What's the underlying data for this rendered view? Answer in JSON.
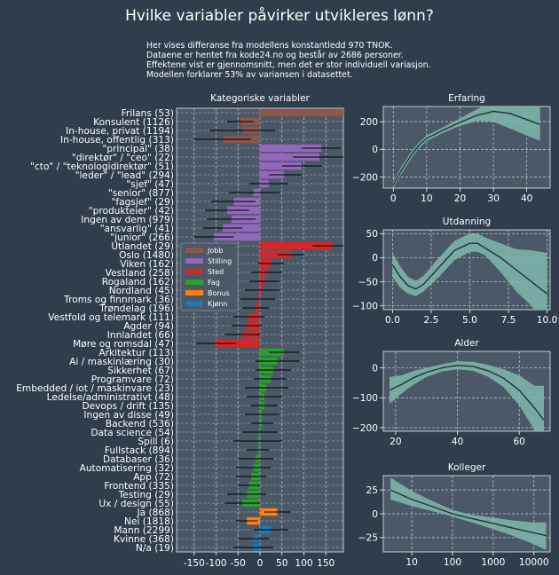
{
  "title": "Hvilke variabler påvirker utvikleres lønn?",
  "subtitle_lines": [
    "Her vises differanse fra modellens konstantledd 970 TNOK.",
    "Dataene er hentet fra kode24.no og består av 2686 personer.",
    "Effektene vist er gjennomsnitt, men det er stor individuell variasjon.",
    "Modellen forklarer 53% av variansen i datasettet."
  ],
  "colors": {
    "background": "#2f3d4c",
    "panel": "#4b5867",
    "grid": "#c8ced6",
    "band": "#7fb8ac",
    "line": "#223038",
    "Jobb": "#8c564b",
    "Stilling": "#9467bd",
    "Sted": "#d62728",
    "Fag": "#2ca02c",
    "Bonus": "#ff7f0e",
    "Kjønn": "#1f77b4"
  },
  "chart_data": [
    {
      "type": "bar",
      "orientation": "horizontal",
      "title": "Kategoriske variabler",
      "xlabel": "",
      "ylabel": "",
      "xlim": [
        -190,
        190
      ],
      "xticks": [
        -150,
        -100,
        -50,
        0,
        50,
        100,
        150
      ],
      "xtick_labels": [
        "-150",
        "-100",
        "-50",
        "0",
        "50",
        "100",
        "150"
      ],
      "grid": true,
      "legend_position": "left-middle",
      "legend": [
        "Jobb",
        "Stilling",
        "Sted",
        "Fag",
        "Bonus",
        "Kjønn"
      ],
      "bars": [
        {
          "label": "Frilans (53)",
          "group": "Jobb",
          "value": 190,
          "ci": [
            190,
            190
          ]
        },
        {
          "label": "Konsulent (1126)",
          "group": "Jobb",
          "value": -45,
          "ci": [
            -75,
            -15
          ]
        },
        {
          "label": "In-house, privat (1194)",
          "group": "Jobb",
          "value": -40,
          "ci": [
            -115,
            35
          ]
        },
        {
          "label": "In-house, offentlig (313)",
          "group": "Jobb",
          "value": -85,
          "ci": [
            -150,
            -20
          ]
        },
        {
          "label": "\"principal\" (38)",
          "group": "Stilling",
          "value": 140,
          "ci": [
            95,
            185
          ]
        },
        {
          "label": "\"direktør\" / \"ceo\" (22)",
          "group": "Stilling",
          "value": 135,
          "ci": [
            75,
            190
          ]
        },
        {
          "label": "\"cto\" / \"teknologidirektør\" (51)",
          "group": "Stilling",
          "value": 95,
          "ci": [
            50,
            140
          ]
        },
        {
          "label": "\"leder\" / \"lead\" (294)",
          "group": "Stilling",
          "value": 55,
          "ci": [
            20,
            95
          ]
        },
        {
          "label": "\"sjef\" (47)",
          "group": "Stilling",
          "value": 20,
          "ci": [
            -25,
            65
          ]
        },
        {
          "label": "\"senior\" (877)",
          "group": "Stilling",
          "value": -15,
          "ci": [
            -70,
            45
          ]
        },
        {
          "label": "\"fagsjef\" (29)",
          "group": "Stilling",
          "value": -60,
          "ci": [
            -110,
            -10
          ]
        },
        {
          "label": "\"produkteier\" (42)",
          "group": "Stilling",
          "value": -75,
          "ci": [
            -125,
            -25
          ]
        },
        {
          "label": "Ingen av dem (979)",
          "group": "Stilling",
          "value": -65,
          "ci": [
            -120,
            -10
          ]
        },
        {
          "label": "\"ansvarlig\" (41)",
          "group": "Stilling",
          "value": -85,
          "ci": [
            -130,
            -40
          ]
        },
        {
          "label": "\"junior\" (266)",
          "group": "Stilling",
          "value": -105,
          "ci": [
            -150,
            -60
          ]
        },
        {
          "label": "Utlandet (29)",
          "group": "Sted",
          "value": 165,
          "ci": [
            120,
            190
          ]
        },
        {
          "label": "Oslo (1480)",
          "group": "Sted",
          "value": 70,
          "ci": [
            40,
            100
          ]
        },
        {
          "label": "Viken (162)",
          "group": "Sted",
          "value": 25,
          "ci": [
            -5,
            55
          ]
        },
        {
          "label": "Vestland (258)",
          "group": "Sted",
          "value": 15,
          "ci": [
            -20,
            50
          ]
        },
        {
          "label": "Rogaland (162)",
          "group": "Sted",
          "value": 10,
          "ci": [
            -25,
            45
          ]
        },
        {
          "label": "Nordland (45)",
          "group": "Sted",
          "value": 5,
          "ci": [
            -35,
            45
          ]
        },
        {
          "label": "Troms og finnmark (36)",
          "group": "Sted",
          "value": -5,
          "ci": [
            -45,
            35
          ]
        },
        {
          "label": "Trøndelag (196)",
          "group": "Sted",
          "value": -10,
          "ci": [
            -40,
            20
          ]
        },
        {
          "label": "Vestfold og telemark (111)",
          "group": "Sted",
          "value": -25,
          "ci": [
            -60,
            10
          ]
        },
        {
          "label": "Agder (94)",
          "group": "Sted",
          "value": -30,
          "ci": [
            -65,
            5
          ]
        },
        {
          "label": "Innlandet (66)",
          "group": "Sted",
          "value": -40,
          "ci": [
            -80,
            0
          ]
        },
        {
          "label": "Møre og romsdal (47)",
          "group": "Sted",
          "value": -100,
          "ci": [
            -145,
            -55
          ]
        },
        {
          "label": "Arkitektur (113)",
          "group": "Fag",
          "value": 55,
          "ci": [
            20,
            90
          ]
        },
        {
          "label": "Ai / maskinlæring (30)",
          "group": "Fag",
          "value": 40,
          "ci": [
            -10,
            90
          ]
        },
        {
          "label": "Sikkerhet (67)",
          "group": "Fag",
          "value": 30,
          "ci": [
            -10,
            70
          ]
        },
        {
          "label": "Programvare (72)",
          "group": "Fag",
          "value": 25,
          "ci": [
            -15,
            60
          ]
        },
        {
          "label": "Embedded / iot / maskinvare (23)",
          "group": "Fag",
          "value": 15,
          "ci": [
            -35,
            65
          ]
        },
        {
          "label": "Ledelse/administrativt (48)",
          "group": "Fag",
          "value": 10,
          "ci": [
            -30,
            50
          ]
        },
        {
          "label": "Devops / drift (135)",
          "group": "Fag",
          "value": 10,
          "ci": [
            -20,
            40
          ]
        },
        {
          "label": "Ingen av disse (49)",
          "group": "Fag",
          "value": 5,
          "ci": [
            -35,
            45
          ]
        },
        {
          "label": "Backend (536)",
          "group": "Fag",
          "value": 5,
          "ci": [
            -20,
            30
          ]
        },
        {
          "label": "Data science (54)",
          "group": "Fag",
          "value": 0,
          "ci": [
            -40,
            40
          ]
        },
        {
          "label": "Spill (6)",
          "group": "Fag",
          "value": -5,
          "ci": [
            -60,
            50
          ]
        },
        {
          "label": "Fullstack (894)",
          "group": "Fag",
          "value": -5,
          "ci": [
            -30,
            20
          ]
        },
        {
          "label": "Databaser (36)",
          "group": "Fag",
          "value": -10,
          "ci": [
            -50,
            30
          ]
        },
        {
          "label": "Automatisering (32)",
          "group": "Fag",
          "value": -15,
          "ci": [
            -55,
            25
          ]
        },
        {
          "label": "App (72)",
          "group": "Fag",
          "value": -20,
          "ci": [
            -55,
            15
          ]
        },
        {
          "label": "Frontend (335)",
          "group": "Fag",
          "value": -25,
          "ci": [
            -50,
            0
          ]
        },
        {
          "label": "Testing (29)",
          "group": "Fag",
          "value": -30,
          "ci": [
            -75,
            15
          ]
        },
        {
          "label": "Ux / design (55)",
          "group": "Fag",
          "value": -40,
          "ci": [
            -80,
            0
          ]
        },
        {
          "label": "Ja (868)",
          "group": "Bonus",
          "value": 40,
          "ci": [
            10,
            70
          ]
        },
        {
          "label": "Nei (1818)",
          "group": "Bonus",
          "value": -30,
          "ci": [
            -55,
            -5
          ]
        },
        {
          "label": "Mann (2299)",
          "group": "Kjønn",
          "value": 25,
          "ci": [
            -15,
            65
          ]
        },
        {
          "label": "Kvinne (368)",
          "group": "Kjønn",
          "value": -15,
          "ci": [
            -50,
            20
          ]
        },
        {
          "label": "N/a (19)",
          "group": "Kjønn",
          "value": -15,
          "ci": [
            -60,
            30
          ]
        }
      ]
    },
    {
      "type": "line",
      "title": "Erfaring",
      "xlim": [
        -3,
        47
      ],
      "ylim": [
        -280,
        310
      ],
      "xticks": [
        0,
        10,
        20,
        30,
        40
      ],
      "xtick_labels": [
        "0",
        "10",
        "20",
        "30",
        "40"
      ],
      "yticks": [
        -200,
        0,
        200
      ],
      "ytick_labels": [
        "−200",
        "0",
        "200"
      ],
      "grid": true,
      "x": [
        0,
        2.5,
        5,
        7.5,
        10,
        15,
        20,
        25,
        30,
        35,
        40,
        44
      ],
      "y": [
        -255,
        -150,
        -55,
        25,
        80,
        140,
        195,
        245,
        275,
        260,
        215,
        180
      ],
      "lower": [
        -275,
        -175,
        -80,
        5,
        60,
        120,
        170,
        205,
        200,
        150,
        100,
        60
      ],
      "upper": [
        -235,
        -125,
        -30,
        45,
        100,
        160,
        225,
        290,
        350,
        370,
        340,
        330
      ]
    },
    {
      "type": "line",
      "title": "Utdanning",
      "xlim": [
        -0.6,
        10.2
      ],
      "ylim": [
        -108,
        58
      ],
      "xticks": [
        0,
        2.5,
        5,
        7.5,
        10
      ],
      "xtick_labels": [
        "0.0",
        "2.5",
        "5.0",
        "7.5",
        "10.0"
      ],
      "yticks": [
        -100,
        -50,
        0,
        50
      ],
      "ytick_labels": [
        "−100",
        "−50",
        "0",
        "50"
      ],
      "grid": true,
      "x": [
        0,
        0.5,
        1,
        1.5,
        2,
        3,
        4,
        5,
        5.5,
        6,
        7,
        8,
        9,
        10
      ],
      "y": [
        -15,
        -40,
        -58,
        -65,
        -55,
        -20,
        15,
        30,
        30,
        20,
        0,
        -25,
        -50,
        -75
      ],
      "lower": [
        -40,
        -62,
        -75,
        -80,
        -70,
        -40,
        -5,
        12,
        12,
        5,
        -30,
        -70,
        -100,
        -150
      ],
      "upper": [
        10,
        -18,
        -40,
        -48,
        -38,
        0,
        35,
        50,
        50,
        42,
        30,
        18,
        15,
        10
      ]
    },
    {
      "type": "line",
      "title": "Alder",
      "xlim": [
        16,
        70
      ],
      "ylim": [
        -212,
        55
      ],
      "xticks": [
        20,
        40,
        60
      ],
      "xtick_labels": [
        "20",
        "40",
        "60"
      ],
      "yticks": [
        -200,
        -100,
        0
      ],
      "ytick_labels": [
        "−200",
        "−100",
        "0"
      ],
      "grid": true,
      "x": [
        18,
        22,
        26,
        30,
        35,
        40,
        45,
        50,
        55,
        60,
        65,
        68
      ],
      "y": [
        -75,
        -55,
        -32,
        -15,
        0,
        8,
        5,
        -10,
        -35,
        -75,
        -135,
        -175
      ],
      "lower": [
        -120,
        -85,
        -55,
        -30,
        -12,
        -5,
        -10,
        -30,
        -65,
        -125,
        -210,
        -290
      ],
      "upper": [
        -30,
        -25,
        -10,
        0,
        12,
        22,
        20,
        10,
        -5,
        -25,
        -60,
        -60
      ]
    },
    {
      "type": "line",
      "title": "Kolleger",
      "xscale": "log",
      "xlim": [
        2,
        25000
      ],
      "ylim": [
        -40,
        40
      ],
      "xticks": [
        10,
        100,
        1000,
        10000
      ],
      "xtick_labels": [
        "10",
        "100",
        "1000",
        "10000"
      ],
      "yticks": [
        -25,
        0,
        25
      ],
      "ytick_labels": [
        "−25",
        "0",
        "25"
      ],
      "grid": true,
      "x": [
        3,
        10,
        30,
        100,
        300,
        1000,
        3000,
        10000,
        20000
      ],
      "y": [
        25,
        15,
        8,
        0,
        -5,
        -10,
        -15,
        -20,
        -23
      ],
      "lower": [
        15,
        8,
        3,
        -3,
        -9,
        -16,
        -23,
        -32,
        -38
      ],
      "upper": [
        38,
        24,
        14,
        4,
        -1,
        -4,
        -7,
        -9,
        -9
      ]
    }
  ]
}
